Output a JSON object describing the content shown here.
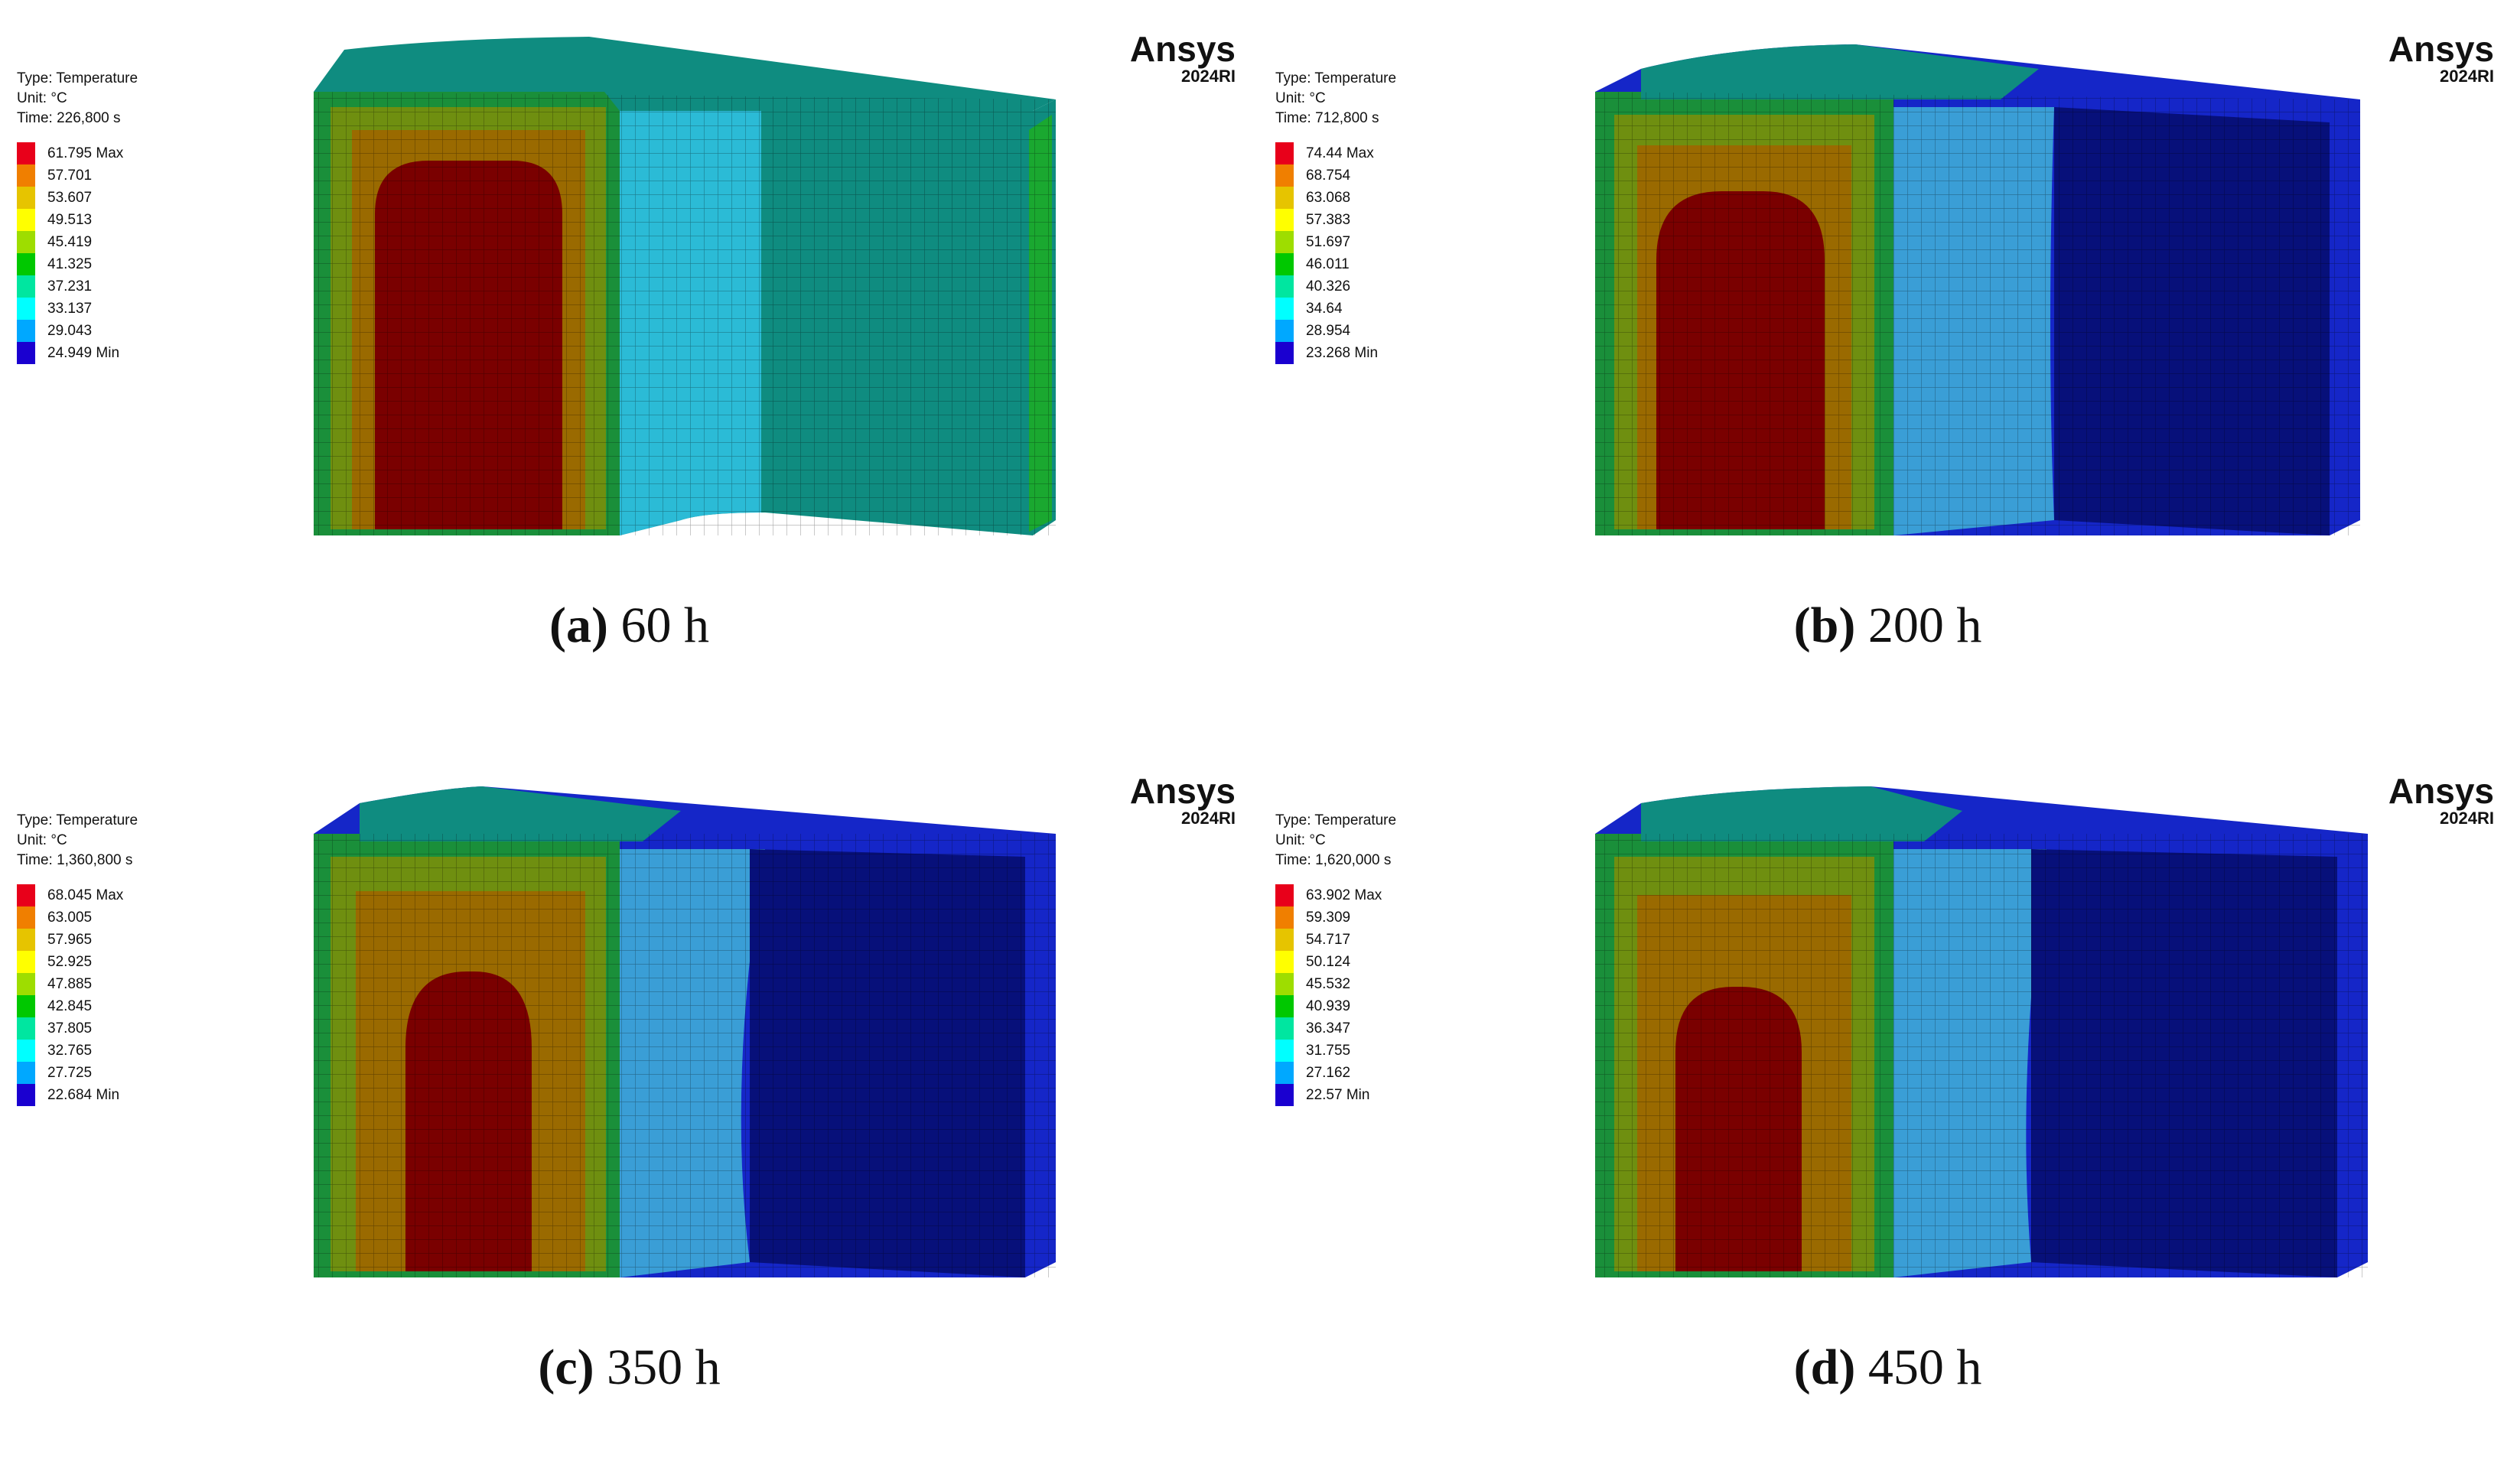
{
  "panels": [
    {
      "caption_letter": "(a)",
      "caption_rest": "60 h",
      "brand": "Ansys",
      "version": "2024RI",
      "type": "Type: Temperature",
      "unit": "Unit: °C",
      "time": "Time: 226,800 s",
      "scale": [
        "61.795 Max",
        "57.701",
        "53.607",
        "49.513",
        "45.419",
        "41.325",
        "37.231",
        "33.137",
        "29.043",
        "24.949 Min"
      ]
    },
    {
      "caption_letter": "(b)",
      "caption_rest": "200 h",
      "brand": "Ansys",
      "version": "2024RI",
      "type": "Type: Temperature",
      "unit": "Unit: °C",
      "time": "Time: 712,800 s",
      "scale": [
        "74.44 Max",
        "68.754",
        "63.068",
        "57.383",
        "51.697",
        "46.011",
        "40.326",
        "34.64",
        "28.954",
        "23.268 Min"
      ]
    },
    {
      "caption_letter": "(c)",
      "caption_rest": "350 h",
      "brand": "Ansys",
      "version": "2024RI",
      "type": "Type: Temperature",
      "unit": "Unit: °C",
      "time": "Time: 1,360,800 s",
      "scale": [
        "68.045 Max",
        "63.005",
        "57.965",
        "52.925",
        "47.885",
        "42.845",
        "37.805",
        "32.765",
        "27.725",
        "22.684 Min"
      ]
    },
    {
      "caption_letter": "(d)",
      "caption_rest": "450 h",
      "brand": "Ansys",
      "version": "2024RI",
      "type": "Type: Temperature",
      "unit": "Unit: °C",
      "time": "Time: 1,620,000 s",
      "scale": [
        "63.902 Max",
        "59.309",
        "54.717",
        "50.124",
        "45.532",
        "40.939",
        "36.347",
        "31.755",
        "27.162",
        "22.57 Min"
      ]
    }
  ],
  "colors": {
    "legend": [
      "#e8001a",
      "#f07f00",
      "#e6c400",
      "#ffff00",
      "#9edd00",
      "#00c800",
      "#00e6a0",
      "#00ffff",
      "#00a8ff",
      "#1a00d0"
    ],
    "hot": "#7a0000",
    "mid_red": "#b84000",
    "orange_band": "#9a6a00",
    "olive": "#6f8f10",
    "green": "#1a8f3a",
    "teal": "#0f8c80",
    "cyan_light": "#2bbbd6",
    "light_blue": "#3a9ed6",
    "blue": "#1526c8",
    "dark_blue": "#07107a"
  }
}
